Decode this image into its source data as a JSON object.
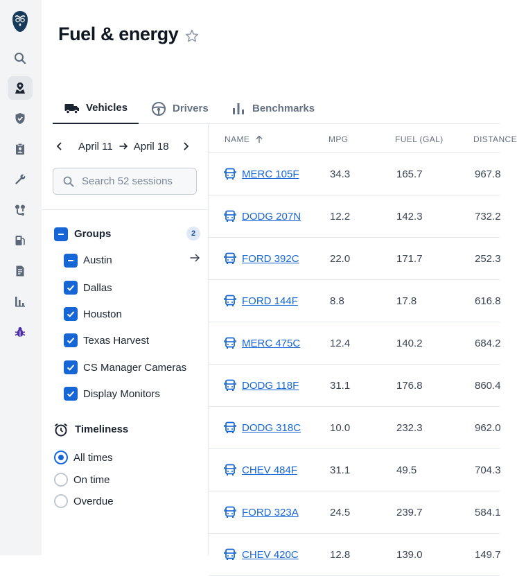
{
  "page": {
    "title": "Fuel & energy"
  },
  "brand": {
    "accent": "#1666d6"
  },
  "rail": {
    "items": [
      {
        "name": "search-icon"
      },
      {
        "name": "map-pin-icon",
        "active": true
      },
      {
        "name": "shield-check-icon"
      },
      {
        "name": "clipboard-user-icon"
      },
      {
        "name": "wrench-icon"
      },
      {
        "name": "route-icon"
      },
      {
        "name": "fuel-pump-icon"
      },
      {
        "name": "document-icon"
      },
      {
        "name": "bar-chart-icon"
      },
      {
        "name": "bug-icon"
      }
    ]
  },
  "tabs": [
    {
      "label": "Vehicles",
      "icon": "truck-icon",
      "active": true
    },
    {
      "label": "Drivers",
      "icon": "steering-wheel-icon",
      "active": false
    },
    {
      "label": "Benchmarks",
      "icon": "bar-chart-icon",
      "active": false
    }
  ],
  "filters": {
    "date_from": "April 11",
    "date_to": "April 18",
    "search_placeholder": "Search 52 sessions",
    "search_value": "",
    "groups": {
      "title": "Groups",
      "count": "2",
      "items": [
        {
          "label": "Austin",
          "state": "indeterminate"
        },
        {
          "label": "Dallas",
          "state": "checked"
        },
        {
          "label": "Houston",
          "state": "checked"
        },
        {
          "label": "Texas Harvest",
          "state": "checked"
        },
        {
          "label": "CS Manager Cameras",
          "state": "checked"
        },
        {
          "label": "Display Monitors",
          "state": "checked"
        }
      ]
    },
    "timeliness": {
      "title": "Timeliness",
      "options": [
        {
          "label": "All times",
          "selected": true
        },
        {
          "label": "On time",
          "selected": false
        },
        {
          "label": "Overdue",
          "selected": false
        }
      ]
    }
  },
  "table": {
    "columns": [
      "NAME",
      "MPG",
      "FUEL (GAL)",
      "DISTANCE"
    ],
    "rows": [
      {
        "name": "MERC 105F",
        "mpg": "34.3",
        "fuel": "165.7",
        "distance": "967.8"
      },
      {
        "name": "DODG 207N",
        "mpg": "12.2",
        "fuel": "142.3",
        "distance": "732.2"
      },
      {
        "name": "FORD 392C",
        "mpg": "22.0",
        "fuel": "171.7",
        "distance": "252.3"
      },
      {
        "name": "FORD 144F",
        "mpg": "8.8",
        "fuel": "17.8",
        "distance": "616.8"
      },
      {
        "name": "MERC 475C",
        "mpg": "12.4",
        "fuel": "140.2",
        "distance": "684.2"
      },
      {
        "name": "DODG 118F",
        "mpg": "31.1",
        "fuel": "176.8",
        "distance": "860.4"
      },
      {
        "name": "DODG 318C",
        "mpg": "10.0",
        "fuel": "232.3",
        "distance": "962.0"
      },
      {
        "name": "CHEV 484F",
        "mpg": "31.1",
        "fuel": "49.5",
        "distance": "704.3"
      },
      {
        "name": "FORD 323A",
        "mpg": "24.5",
        "fuel": "239.7",
        "distance": "584.1"
      },
      {
        "name": "CHEV 420C",
        "mpg": "12.8",
        "fuel": "139.0",
        "distance": "149.7"
      }
    ]
  }
}
